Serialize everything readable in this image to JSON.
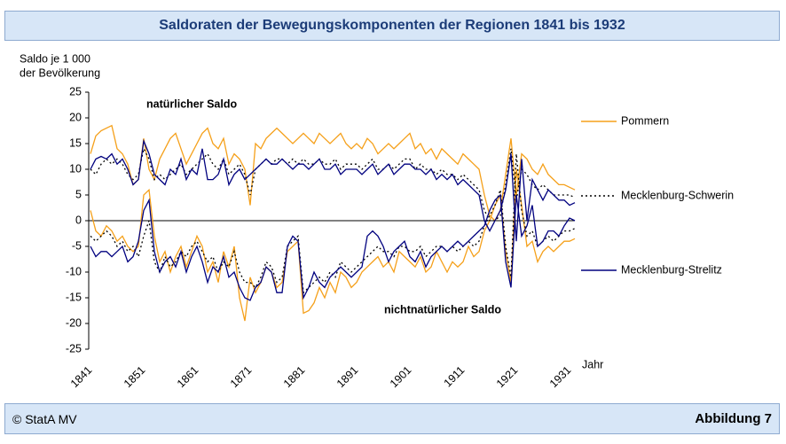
{
  "chart_data": {
    "type": "line",
    "title": "Saldoraten der Bewegungskomponenten der Regionen 1841 bis 1932",
    "y_label_lines": [
      "Saldo je 1 000",
      "der Bevölkerung"
    ],
    "x_label": "Jahr",
    "annotations": [
      "natürlicher Saldo",
      "nichtnatürlicher Saldo"
    ],
    "source": "© StatA MV",
    "figure_label": "Abbildung 7",
    "x": [
      1841,
      1842,
      1843,
      1844,
      1845,
      1846,
      1847,
      1848,
      1849,
      1850,
      1851,
      1852,
      1853,
      1854,
      1855,
      1856,
      1857,
      1858,
      1859,
      1860,
      1861,
      1862,
      1863,
      1864,
      1865,
      1866,
      1867,
      1868,
      1869,
      1870,
      1871,
      1872,
      1873,
      1874,
      1875,
      1876,
      1877,
      1878,
      1879,
      1880,
      1881,
      1882,
      1883,
      1884,
      1885,
      1886,
      1887,
      1888,
      1889,
      1890,
      1891,
      1892,
      1893,
      1894,
      1895,
      1896,
      1897,
      1898,
      1899,
      1900,
      1901,
      1902,
      1903,
      1904,
      1905,
      1906,
      1907,
      1908,
      1909,
      1910,
      1911,
      1912,
      1913,
      1914,
      1915,
      1916,
      1917,
      1918,
      1919,
      1920,
      1921,
      1922,
      1923,
      1924,
      1925,
      1926,
      1927,
      1928,
      1929,
      1930,
      1931,
      1932
    ],
    "xlim": [
      1841,
      1932
    ],
    "xticks": [
      1841,
      1851,
      1861,
      1871,
      1881,
      1891,
      1901,
      1911,
      1921,
      1931
    ],
    "ylim": [
      -25,
      25
    ],
    "yticks": [
      -25,
      -20,
      -15,
      -10,
      -5,
      0,
      5,
      10,
      15,
      20,
      25
    ],
    "grid": false,
    "series": [
      {
        "name": "Pommern",
        "color": "#f5a01a",
        "line_style": "solid",
        "natural": [
          13,
          16.5,
          17.5,
          18,
          18.5,
          14,
          13,
          11,
          7,
          8,
          16,
          10,
          8,
          12,
          14,
          16,
          17,
          14,
          11,
          13,
          15,
          17,
          18,
          15,
          14,
          16,
          11,
          13,
          12,
          10,
          3,
          15,
          14,
          16,
          17,
          18,
          17,
          16,
          15,
          16,
          17,
          16,
          15,
          17,
          16,
          15,
          16,
          17,
          15,
          14,
          15,
          14,
          16,
          15,
          13,
          14,
          15,
          14,
          15,
          16,
          17,
          14,
          15,
          13,
          14,
          12,
          14,
          13,
          12,
          11,
          13,
          12,
          11,
          10,
          5,
          1,
          0,
          2,
          9,
          16,
          5,
          13,
          12,
          10,
          9,
          11,
          9,
          8,
          7,
          7,
          6.5,
          6
        ],
        "migration": [
          2,
          -2,
          -3,
          -1,
          -2,
          -4,
          -3,
          -5,
          -6,
          -5,
          5,
          6,
          -3,
          -8,
          -6,
          -10,
          -7,
          -5,
          -9,
          -6,
          -3,
          -5,
          -10,
          -8,
          -12,
          -6,
          -9,
          -5,
          -15,
          -19.5,
          -11,
          -14,
          -12,
          -9,
          -10,
          -13,
          -12,
          -6,
          -5,
          -4,
          -18,
          -17.5,
          -16,
          -13,
          -15,
          -12,
          -14,
          -10,
          -11,
          -13,
          -12,
          -10,
          -9,
          -8,
          -7,
          -9,
          -8,
          -10,
          -6,
          -7,
          -8,
          -9,
          -7,
          -10,
          -9,
          -6,
          -8,
          -10,
          -8,
          -9,
          -8,
          -5,
          -7,
          -6,
          -2,
          0,
          3,
          5,
          -6,
          -12,
          10,
          3,
          -5,
          -4,
          -8,
          -6,
          -5,
          -6,
          -5,
          -4,
          -4,
          -3.5
        ]
      },
      {
        "name": "Mecklenburg-Schwerin",
        "color": "#000000",
        "line_style": "dotted",
        "natural": [
          10,
          9,
          11,
          12,
          11,
          12,
          11,
          9,
          8,
          9,
          14,
          12,
          8,
          9,
          8,
          9,
          10,
          11,
          9,
          10,
          11,
          12,
          13,
          11,
          10,
          12,
          9,
          10,
          11,
          9,
          5,
          10,
          11,
          12,
          11,
          12,
          12,
          11,
          12,
          11,
          12,
          11,
          11,
          12,
          11,
          11,
          12,
          10,
          11,
          11,
          11,
          10,
          11,
          12,
          10,
          10,
          11,
          10,
          11,
          12,
          12,
          10,
          11,
          10,
          10,
          9,
          10,
          9,
          9,
          8,
          9,
          8,
          7,
          6,
          2,
          0,
          0,
          1,
          7,
          14,
          4,
          10,
          9,
          7,
          6,
          7,
          6,
          5,
          5,
          5,
          5,
          4.5
        ],
        "migration": [
          -3,
          -4,
          -3,
          -2,
          -3,
          -5,
          -4,
          -6,
          -5,
          -7,
          -3,
          0,
          -8,
          -10,
          -7,
          -9,
          -8,
          -6,
          -7,
          -5,
          -4,
          -6,
          -8,
          -7,
          -10,
          -8,
          -9,
          -6,
          -10,
          -12,
          -12,
          -13,
          -11,
          -8,
          -9,
          -12,
          -11,
          -5,
          -4,
          -3,
          -14,
          -13,
          -12,
          -11,
          -12,
          -10,
          -11,
          -8,
          -9,
          -10,
          -9,
          -8,
          -7,
          -6,
          -5,
          -6,
          -6,
          -7,
          -5,
          -5,
          -6,
          -6,
          -5,
          -7,
          -6,
          -5,
          -5,
          -6,
          -5,
          -6,
          -5,
          -4,
          -5,
          -4,
          -1,
          1,
          3,
          6,
          -5,
          -11,
          13,
          2,
          -3,
          -2,
          -5,
          -4,
          -3,
          -4,
          -3,
          -2,
          -2,
          -1.5
        ]
      },
      {
        "name": "Mecklenburg-Strelitz",
        "color": "#00007f",
        "line_style": "solid",
        "natural": [
          10,
          12,
          12.5,
          12,
          13,
          11,
          12,
          10,
          7,
          8,
          15.5,
          13,
          9,
          8,
          7,
          10,
          9,
          12,
          8,
          10,
          9,
          14,
          8,
          8,
          9,
          12,
          7,
          9,
          10,
          8,
          9,
          10,
          11,
          12,
          11,
          11,
          12,
          11,
          10,
          11,
          11,
          10,
          11,
          12,
          10,
          10,
          11,
          9,
          10,
          10,
          10,
          9,
          10,
          11,
          9,
          10,
          11,
          9,
          10,
          11,
          11,
          10,
          10,
          9,
          10,
          8,
          9,
          8,
          9,
          7,
          8,
          7,
          6,
          5,
          0,
          -2,
          0,
          2,
          6,
          13,
          -4,
          12,
          0,
          8,
          6,
          4,
          6,
          5,
          4,
          4,
          3,
          3.5
        ],
        "migration": [
          -5,
          -7,
          -6,
          -6,
          -7,
          -6,
          -5,
          -8,
          -7,
          -4,
          2,
          4,
          -6,
          -10,
          -8,
          -7,
          -9,
          -6,
          -10,
          -7,
          -5,
          -8,
          -12,
          -9,
          -10,
          -7,
          -11,
          -10,
          -13,
          -15,
          -15.5,
          -13,
          -12,
          -9,
          -10,
          -14,
          -14,
          -5,
          -3,
          -4,
          -15,
          -13,
          -10,
          -12,
          -13,
          -11,
          -10,
          -9,
          -10,
          -11,
          -10,
          -9,
          -3,
          -2,
          -3,
          -5,
          -8,
          -6,
          -5,
          -4,
          -7,
          -8,
          -6,
          -9,
          -7,
          -6,
          -5,
          -6,
          -5,
          -4,
          -5,
          -4,
          -3,
          -2,
          -1,
          2,
          4,
          5,
          -8,
          -13,
          5,
          -3,
          -1,
          3,
          -5,
          -4,
          -2,
          -2,
          -3,
          -1,
          0.5,
          0
        ]
      }
    ]
  }
}
